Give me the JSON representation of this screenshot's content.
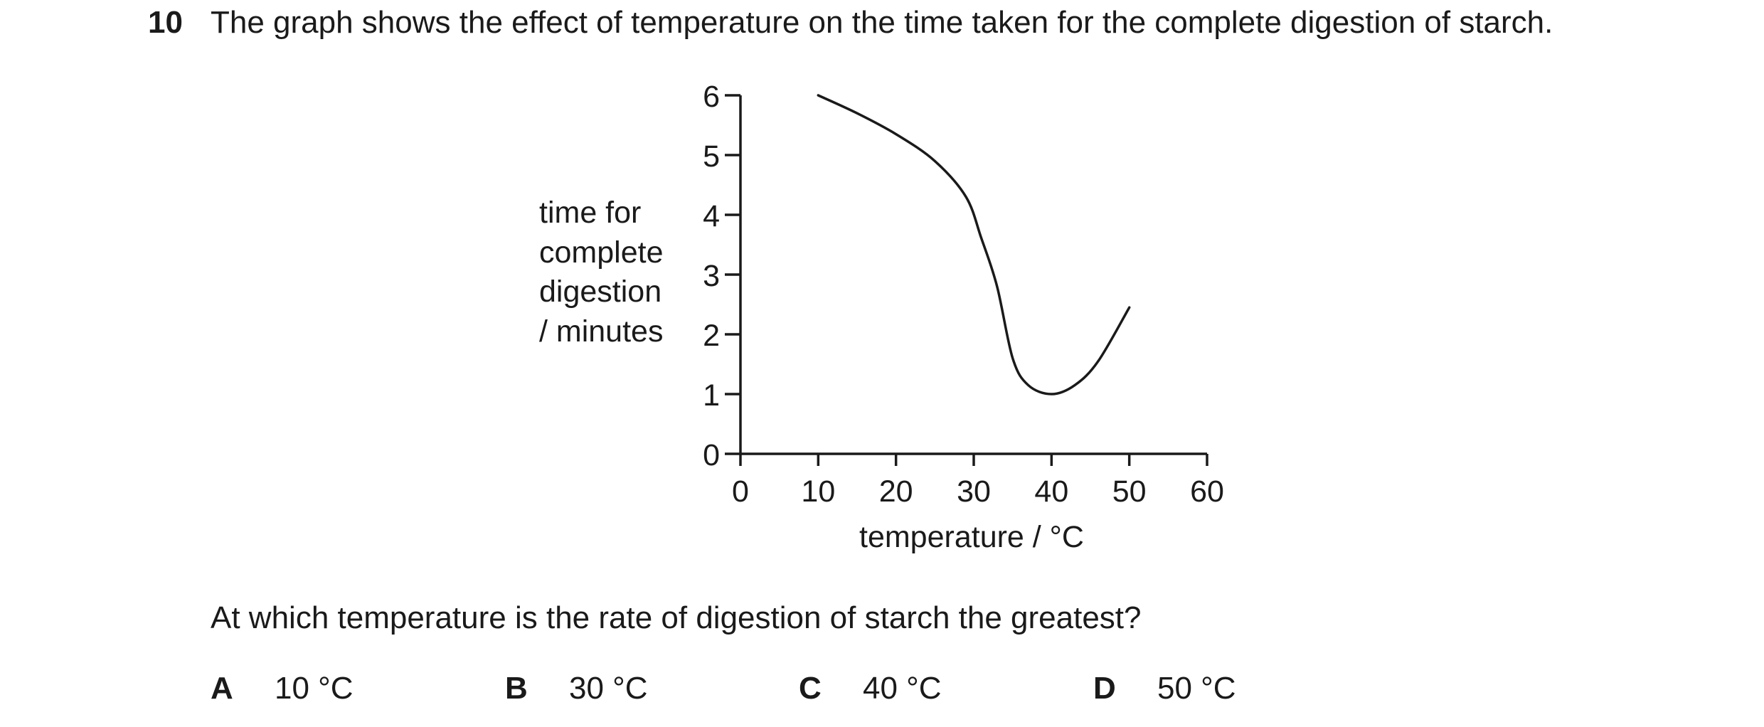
{
  "question": {
    "number": "10",
    "stem": "The graph shows the effect of temperature on the time taken for the complete digestion of starch.",
    "prompt": "At which temperature is the rate of digestion of starch the greatest?",
    "options": [
      {
        "letter": "A",
        "text": "10 °C"
      },
      {
        "letter": "B",
        "text": "30 °C"
      },
      {
        "letter": "C",
        "text": "40 °C"
      },
      {
        "letter": "D",
        "text": "50 °C"
      }
    ]
  },
  "chart_data": {
    "type": "line",
    "xlabel": "temperature / °C",
    "ylabel_lines": [
      "time for",
      "complete",
      "digestion",
      "/ minutes"
    ],
    "xlim": [
      0,
      60
    ],
    "ylim": [
      0,
      6
    ],
    "xticks": [
      "0",
      "10",
      "20",
      "30",
      "40",
      "50",
      "60"
    ],
    "yticks": [
      "0",
      "1",
      "2",
      "3",
      "4",
      "5",
      "6"
    ],
    "grid": false,
    "series": [
      {
        "color": "#1a1a1a",
        "points": [
          [
            10,
            6.0
          ],
          [
            15,
            5.7
          ],
          [
            20,
            5.35
          ],
          [
            25,
            4.9
          ],
          [
            29,
            4.3
          ],
          [
            31,
            3.6
          ],
          [
            33,
            2.8
          ],
          [
            35,
            1.6
          ],
          [
            37,
            1.15
          ],
          [
            40,
            1.0
          ],
          [
            43,
            1.15
          ],
          [
            46,
            1.55
          ],
          [
            50,
            2.45
          ]
        ]
      }
    ]
  }
}
